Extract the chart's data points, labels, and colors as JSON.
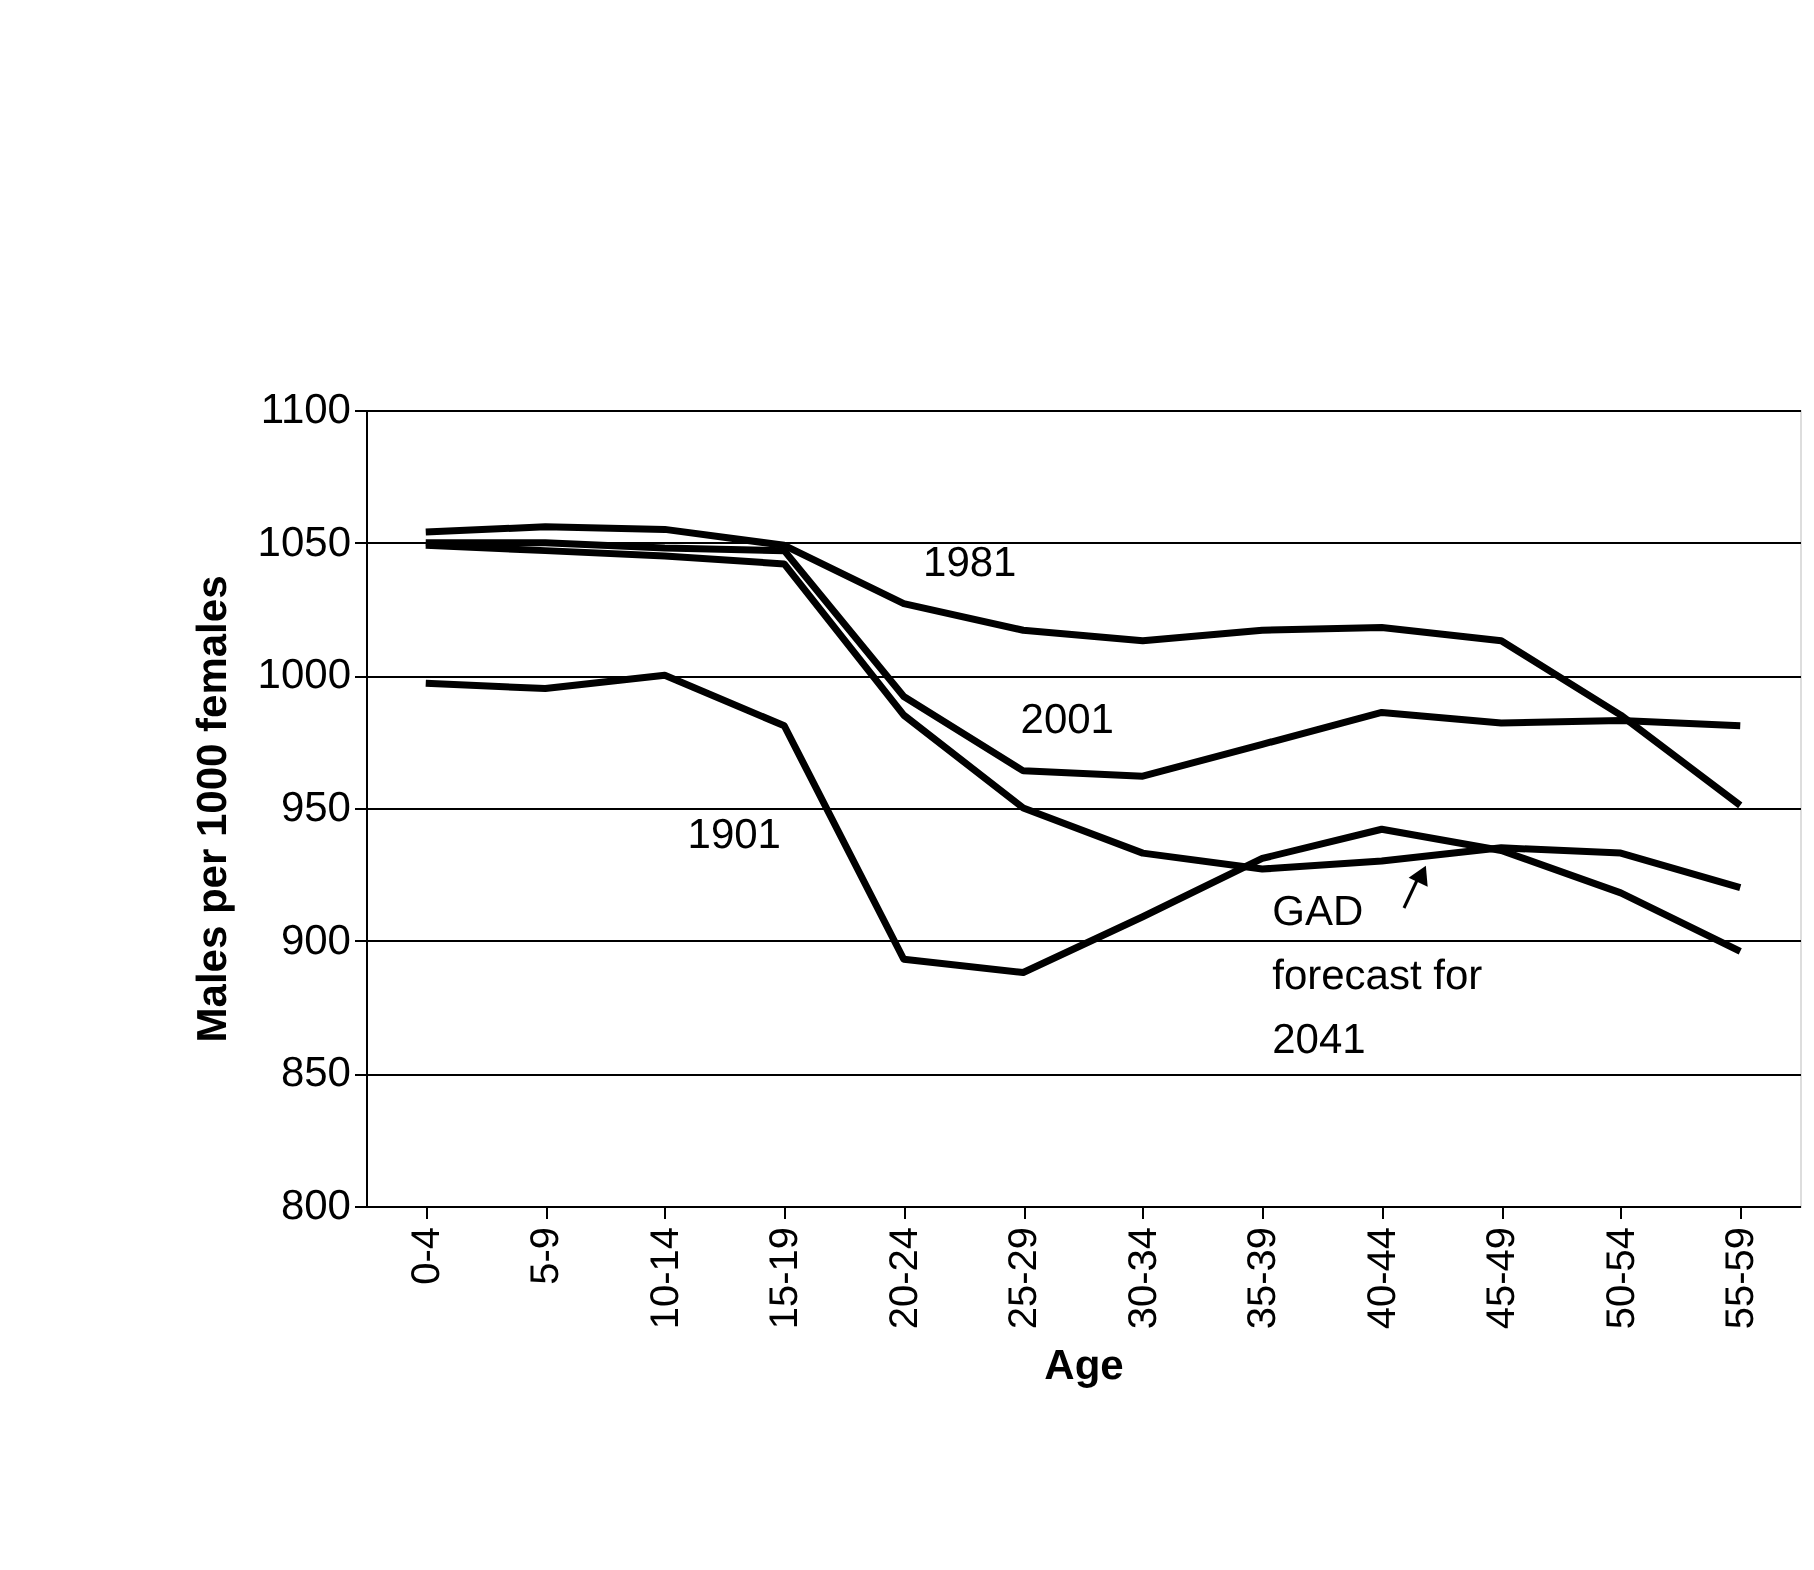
{
  "chart_data": {
    "type": "line",
    "categories": [
      "0-4",
      "5-9",
      "10-14",
      "15-19",
      "20-24",
      "25-29",
      "30-34",
      "35-39",
      "40-44",
      "45-49",
      "50-54",
      "55-59"
    ],
    "xlabel": "Age",
    "ylabel": "Males per 1000 females",
    "ylim": [
      800,
      1100
    ],
    "yticks": [
      800,
      850,
      900,
      950,
      {
        "value": 1000,
        "label": "1000"
      },
      {
        "value": 1050,
        "label": "1050"
      },
      {
        "value": 1100,
        "label": "1100"
      }
    ],
    "grid": "y",
    "marker": "none",
    "line_style": "solid",
    "series": [
      {
        "name": "1981",
        "color": "#000000",
        "values": [
          1054,
          1056,
          1055,
          1049,
          1027,
          1017,
          1013,
          1017,
          1018,
          1013,
          985,
          951
        ]
      },
      {
        "name": "2001",
        "color": "#000000",
        "values": [
          1050,
          1050,
          1048,
          1047,
          992,
          964,
          962,
          974,
          986,
          982,
          983,
          981
        ]
      },
      {
        "name": "1901",
        "color": "#000000",
        "values": [
          997,
          995,
          1000,
          981,
          893,
          888,
          909,
          931,
          942,
          934,
          918,
          896
        ]
      },
      {
        "name": "GAD forecast for 2041",
        "color": "#000000",
        "values": [
          1049,
          1047,
          1045,
          1042,
          985,
          950,
          933,
          927,
          930,
          935,
          933,
          920
        ]
      }
    ]
  }
}
